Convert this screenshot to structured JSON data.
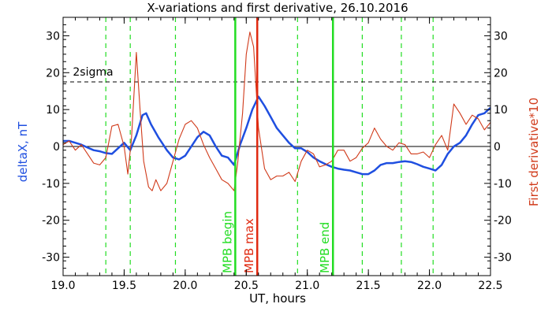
{
  "chart_data": {
    "type": "line",
    "title": "X-variations and first derivative, 26.10.2016",
    "xlabel": "UT, hours",
    "ylabel_left": "deltaX, nT",
    "ylabel_right": "First derivative*10",
    "xlim": [
      19.0,
      22.5
    ],
    "ylim": [
      -35,
      35
    ],
    "x_ticks": [
      "19.0",
      "19.5",
      "20.0",
      "20.5",
      "21.0",
      "21.5",
      "22.0",
      "22.5"
    ],
    "y_ticks": [
      "-30",
      "-20",
      "-10",
      "0",
      "10",
      "20",
      "30"
    ],
    "colors": {
      "deltaX": "#1f4fe0",
      "derivative": "#d03a1a",
      "mpb": "#22dd22",
      "mpb_max": "#e02a10"
    },
    "sigma_level": 17.5,
    "sigma_label": "2sigma",
    "dashed_green_x": [
      19.35,
      19.55,
      19.92,
      20.92,
      21.45,
      21.77,
      22.03
    ],
    "markers": [
      {
        "label": "MPB begin",
        "x": 20.41,
        "color": "#22dd22"
      },
      {
        "label": "MPB max",
        "x": 20.59,
        "color": "#e02a10"
      },
      {
        "label": "MPB end",
        "x": 21.21,
        "color": "#22dd22"
      }
    ],
    "series": [
      {
        "name": "deltaX",
        "x": [
          19.0,
          19.05,
          19.1,
          19.15,
          19.2,
          19.25,
          19.3,
          19.35,
          19.4,
          19.45,
          19.5,
          19.55,
          19.6,
          19.65,
          19.68,
          19.72,
          19.78,
          19.85,
          19.9,
          19.95,
          20.0,
          20.05,
          20.1,
          20.15,
          20.2,
          20.25,
          20.3,
          20.35,
          20.4,
          20.45,
          20.5,
          20.55,
          20.6,
          20.65,
          20.7,
          20.75,
          20.8,
          20.85,
          20.9,
          20.95,
          21.0,
          21.05,
          21.1,
          21.15,
          21.2,
          21.25,
          21.3,
          21.35,
          21.4,
          21.45,
          21.5,
          21.55,
          21.6,
          21.65,
          21.7,
          21.75,
          21.8,
          21.85,
          21.9,
          21.95,
          22.0,
          22.05,
          22.1,
          22.15,
          22.2,
          22.25,
          22.3,
          22.35,
          22.4,
          22.45,
          22.5
        ],
        "values": [
          1.5,
          1.5,
          1.0,
          0.5,
          -0.3,
          -1.0,
          -1.3,
          -1.8,
          -2.0,
          -0.5,
          1.0,
          -1.0,
          3.0,
          8.5,
          9.0,
          6.0,
          2.5,
          -1.0,
          -3.0,
          -3.5,
          -2.5,
          0,
          2.5,
          4.0,
          3.0,
          0,
          -2.5,
          -3.0,
          -5.0,
          0.5,
          5.0,
          10.0,
          13.5,
          11.0,
          8.0,
          5.0,
          3.0,
          1.0,
          -0.5,
          -0.5,
          -1.5,
          -3.0,
          -4.0,
          -4.8,
          -5.5,
          -6.0,
          -6.3,
          -6.5,
          -7.0,
          -7.5,
          -7.5,
          -6.5,
          -5.0,
          -4.5,
          -4.5,
          -4.2,
          -4.0,
          -4.2,
          -4.8,
          -5.5,
          -6.0,
          -6.5,
          -5.0,
          -2.0,
          0,
          1.0,
          3.0,
          6.0,
          8.5,
          9.0,
          10.5
        ]
      },
      {
        "name": "derivative",
        "x": [
          19.0,
          19.05,
          19.1,
          19.15,
          19.2,
          19.25,
          19.3,
          19.35,
          19.4,
          19.45,
          19.5,
          19.53,
          19.56,
          19.6,
          19.63,
          19.66,
          19.7,
          19.73,
          19.76,
          19.8,
          19.85,
          19.9,
          19.95,
          20.0,
          20.05,
          20.1,
          20.15,
          20.2,
          20.25,
          20.3,
          20.35,
          20.4,
          20.43,
          20.47,
          20.5,
          20.53,
          20.56,
          20.6,
          20.65,
          20.7,
          20.75,
          20.8,
          20.85,
          20.9,
          20.95,
          21.0,
          21.05,
          21.1,
          21.15,
          21.2,
          21.25,
          21.3,
          21.35,
          21.4,
          21.45,
          21.5,
          21.55,
          21.6,
          21.65,
          21.7,
          21.75,
          21.8,
          21.85,
          21.9,
          21.95,
          22.0,
          22.05,
          22.1,
          22.15,
          22.2,
          22.25,
          22.3,
          22.35,
          22.4,
          22.45,
          22.5
        ],
        "values": [
          0.5,
          1.5,
          -1.0,
          0.5,
          -2.0,
          -4.5,
          -5.0,
          -3.0,
          5.5,
          6.0,
          0,
          -7.5,
          2.0,
          25.5,
          10.0,
          -4.0,
          -11.0,
          -12.0,
          -9.0,
          -12.0,
          -10.0,
          -4.0,
          2.0,
          6.0,
          7.0,
          5.0,
          0.5,
          -3.0,
          -6.0,
          -9.0,
          -10.0,
          -12.0,
          -4.5,
          9.0,
          25.0,
          31.0,
          27.0,
          5.0,
          -6.0,
          -9.0,
          -8.0,
          -8.0,
          -7.0,
          -9.5,
          -4.0,
          -1.0,
          -2.0,
          -5.5,
          -5.0,
          -4.0,
          -1.0,
          -1.0,
          -4.0,
          -3.0,
          -0.5,
          1.0,
          5.0,
          2.0,
          0,
          -1.0,
          1.0,
          0.5,
          -2.0,
          -2.0,
          -1.5,
          -3.0,
          0.5,
          3.0,
          -1.0,
          11.5,
          9.0,
          6.0,
          8.5,
          7.5,
          4.5,
          6.5
        ]
      }
    ]
  }
}
